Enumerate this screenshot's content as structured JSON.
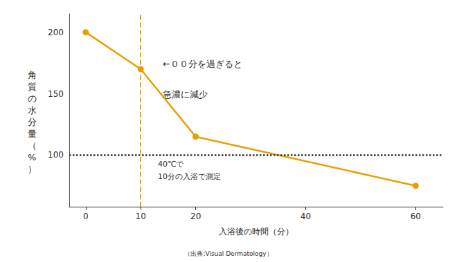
{
  "chart_data": {
    "type": "line",
    "x": [
      0,
      10,
      20,
      60
    ],
    "values": [
      200,
      170,
      115,
      75
    ],
    "color": "#E8A000",
    "marker": "circle",
    "line_style": "solid",
    "xlabel": "入浴後の時間（分）",
    "ylabel": "角質の水分量（%）",
    "source": "（出典:Visual Dermatology）",
    "annotations": [
      "←００分を過ぎると",
      "急濃に減少",
      "40℃で",
      "10分の入浴で測定"
    ],
    "reference_lines": [
      {
        "axis": "y",
        "value": 100,
        "line_style": "dotted",
        "color": "#333333"
      },
      {
        "axis": "x",
        "value": 10,
        "line_style": "dashed",
        "color": "#E8A000"
      }
    ],
    "xlim": [
      -3,
      65
    ],
    "ylim": [
      58,
      215
    ],
    "xticks": [
      0,
      10,
      20,
      40,
      60
    ],
    "yticks": [
      100,
      150,
      200
    ],
    "grid": false
  }
}
